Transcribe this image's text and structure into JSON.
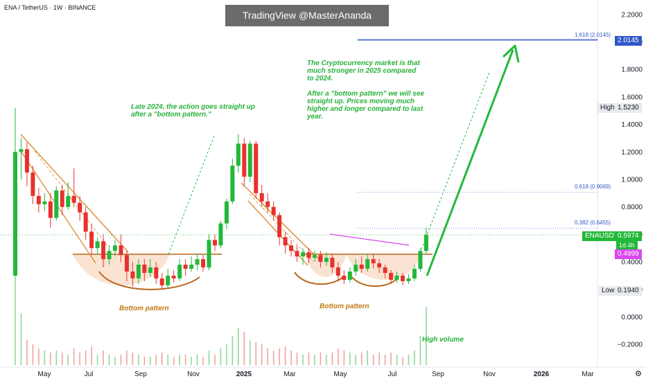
{
  "header": {
    "symbol_title": "ENA / TetherUS · 1W · BINANCE",
    "watermark": "TradingView @MasterAnanda"
  },
  "annotations": {
    "left_text": [
      "Late 2024, the action goes straight up",
      "after a \"bottom pattern.\""
    ],
    "right_text": [
      "The Cryptocurrency market is that",
      "much stronger in 2025 compared",
      "to 2024.",
      "",
      "After a \"bottom pattern\" we will see",
      "straight up. Prices moving much",
      "higher and longer compared to last",
      "year."
    ],
    "bottom_pattern_1": "Bottom pattern",
    "bottom_pattern_2": "Bottom pattern",
    "high_volume": "High volume"
  },
  "fib_levels": [
    {
      "label": "1.618 (2.0145)",
      "value": 2.0145
    },
    {
      "label": "0.618 (0.9069)",
      "value": 0.9069
    },
    {
      "label": "0.382 (0.6455)",
      "value": 0.6455
    }
  ],
  "price_tags": {
    "fib_tag": "2.0145",
    "high_label": "High",
    "high_value": "1.5230",
    "low_label": "Low",
    "low_value": "0.1940",
    "current_symbol": "ENAUSDT",
    "current_value": "0.5974",
    "countdown": "1d 4h",
    "ma_value": "0.4999"
  },
  "colors": {
    "up": "#22b83a",
    "down": "#e8312c",
    "fib": "#2f57c8",
    "pattern": "#d9882a",
    "fill": "#f8d9c3"
  },
  "chart_data": {
    "type": "candlestick",
    "y_axis_ticks": [
      "2.2000",
      "2.0000",
      "1.8000",
      "1.6000",
      "1.4000",
      "1.2000",
      "1.0000",
      "0.8000",
      "0.6000",
      "0.4000",
      "0.2000",
      "0.0000",
      "−0.2000"
    ],
    "x_axis_ticks": [
      "May",
      "Jul",
      "Sep",
      "Nov",
      "2025",
      "Mar",
      "May",
      "Jul",
      "Sep",
      "Nov",
      "2026",
      "Mar"
    ],
    "ylim": [
      -0.3,
      2.25
    ],
    "candles": [
      [
        0.3,
        1.2,
        1.52,
        0.3
      ],
      [
        1.2,
        1.22,
        1.3,
        1.0
      ],
      [
        1.22,
        1.05,
        1.27,
        0.95
      ],
      [
        1.05,
        0.88,
        1.1,
        0.82
      ],
      [
        0.88,
        0.82,
        0.94,
        0.76
      ],
      [
        0.82,
        0.84,
        0.9,
        0.77
      ],
      [
        0.84,
        0.72,
        0.9,
        0.65
      ],
      [
        0.72,
        0.92,
        0.95,
        0.7
      ],
      [
        0.92,
        0.8,
        0.96,
        0.74
      ],
      [
        0.8,
        0.88,
        0.98,
        0.78
      ],
      [
        0.88,
        0.83,
        1.08,
        0.8
      ],
      [
        0.83,
        0.76,
        0.88,
        0.7
      ],
      [
        0.76,
        0.62,
        0.8,
        0.56
      ],
      [
        0.62,
        0.5,
        0.68,
        0.45
      ],
      [
        0.5,
        0.55,
        0.58,
        0.46
      ],
      [
        0.55,
        0.42,
        0.6,
        0.36
      ],
      [
        0.42,
        0.48,
        0.52,
        0.38
      ],
      [
        0.48,
        0.52,
        0.56,
        0.44
      ],
      [
        0.52,
        0.45,
        0.6,
        0.4
      ],
      [
        0.45,
        0.33,
        0.48,
        0.26
      ],
      [
        0.33,
        0.28,
        0.4,
        0.22
      ],
      [
        0.28,
        0.38,
        0.42,
        0.24
      ],
      [
        0.38,
        0.32,
        0.42,
        0.26
      ],
      [
        0.32,
        0.36,
        0.42,
        0.29
      ],
      [
        0.36,
        0.28,
        0.4,
        0.24
      ],
      [
        0.28,
        0.23,
        0.32,
        0.2
      ],
      [
        0.23,
        0.3,
        0.35,
        0.21
      ],
      [
        0.3,
        0.28,
        0.34,
        0.25
      ],
      [
        0.28,
        0.38,
        0.42,
        0.26
      ],
      [
        0.38,
        0.35,
        0.42,
        0.3
      ],
      [
        0.35,
        0.38,
        0.44,
        0.33
      ],
      [
        0.38,
        0.42,
        0.46,
        0.34
      ],
      [
        0.42,
        0.36,
        0.45,
        0.33
      ],
      [
        0.36,
        0.56,
        0.6,
        0.34
      ],
      [
        0.56,
        0.52,
        0.6,
        0.48
      ],
      [
        0.52,
        0.68,
        0.7,
        0.5
      ],
      [
        0.68,
        0.84,
        0.86,
        0.64
      ],
      [
        0.84,
        1.1,
        1.15,
        0.82
      ],
      [
        1.1,
        1.26,
        1.33,
        1.05
      ],
      [
        1.26,
        1.02,
        1.3,
        0.95
      ],
      [
        1.02,
        1.26,
        1.28,
        0.98
      ],
      [
        1.26,
        0.9,
        1.28,
        0.86
      ],
      [
        0.9,
        0.84,
        0.96,
        0.8
      ],
      [
        0.84,
        0.8,
        0.9,
        0.76
      ],
      [
        0.8,
        0.74,
        0.84,
        0.7
      ],
      [
        0.74,
        0.58,
        0.76,
        0.52
      ],
      [
        0.58,
        0.52,
        0.62,
        0.46
      ],
      [
        0.52,
        0.48,
        0.56,
        0.44
      ],
      [
        0.48,
        0.44,
        0.52,
        0.4
      ],
      [
        0.44,
        0.47,
        0.5,
        0.38
      ],
      [
        0.47,
        0.43,
        0.5,
        0.39
      ],
      [
        0.43,
        0.45,
        0.48,
        0.4
      ],
      [
        0.45,
        0.4,
        0.48,
        0.36
      ],
      [
        0.4,
        0.43,
        0.47,
        0.37
      ],
      [
        0.43,
        0.36,
        0.46,
        0.32
      ],
      [
        0.36,
        0.3,
        0.4,
        0.26
      ],
      [
        0.3,
        0.27,
        0.34,
        0.24
      ],
      [
        0.27,
        0.33,
        0.36,
        0.25
      ],
      [
        0.33,
        0.38,
        0.42,
        0.3
      ],
      [
        0.38,
        0.35,
        0.44,
        0.32
      ],
      [
        0.35,
        0.42,
        0.46,
        0.33
      ],
      [
        0.42,
        0.39,
        0.46,
        0.35
      ],
      [
        0.39,
        0.36,
        0.42,
        0.32
      ],
      [
        0.36,
        0.32,
        0.38,
        0.28
      ],
      [
        0.32,
        0.27,
        0.34,
        0.24
      ],
      [
        0.27,
        0.3,
        0.33,
        0.25
      ],
      [
        0.3,
        0.26,
        0.32,
        0.23
      ],
      [
        0.26,
        0.28,
        0.31,
        0.24
      ],
      [
        0.28,
        0.35,
        0.38,
        0.26
      ],
      [
        0.35,
        0.48,
        0.5,
        0.33
      ],
      [
        0.48,
        0.5974,
        0.65,
        0.46
      ]
    ],
    "volumes": [
      0.55,
      0.25,
      0.12,
      0.1,
      0.08,
      0.07,
      0.06,
      0.07,
      0.06,
      0.05,
      0.08,
      0.06,
      0.07,
      0.09,
      0.05,
      0.07,
      0.05,
      0.04,
      0.05,
      0.07,
      0.06,
      0.05,
      0.04,
      0.04,
      0.05,
      0.06,
      0.05,
      0.04,
      0.05,
      0.05,
      0.04,
      0.05,
      0.04,
      0.07,
      0.05,
      0.08,
      0.1,
      0.14,
      0.18,
      0.16,
      0.12,
      0.11,
      0.1,
      0.08,
      0.07,
      0.08,
      0.09,
      0.07,
      0.06,
      0.05,
      0.06,
      0.05,
      0.06,
      0.05,
      0.06,
      0.08,
      0.07,
      0.06,
      0.05,
      0.06,
      0.07,
      0.05,
      0.06,
      0.05,
      0.06,
      0.05,
      0.04,
      0.05,
      0.07,
      0.14,
      0.28
    ]
  }
}
